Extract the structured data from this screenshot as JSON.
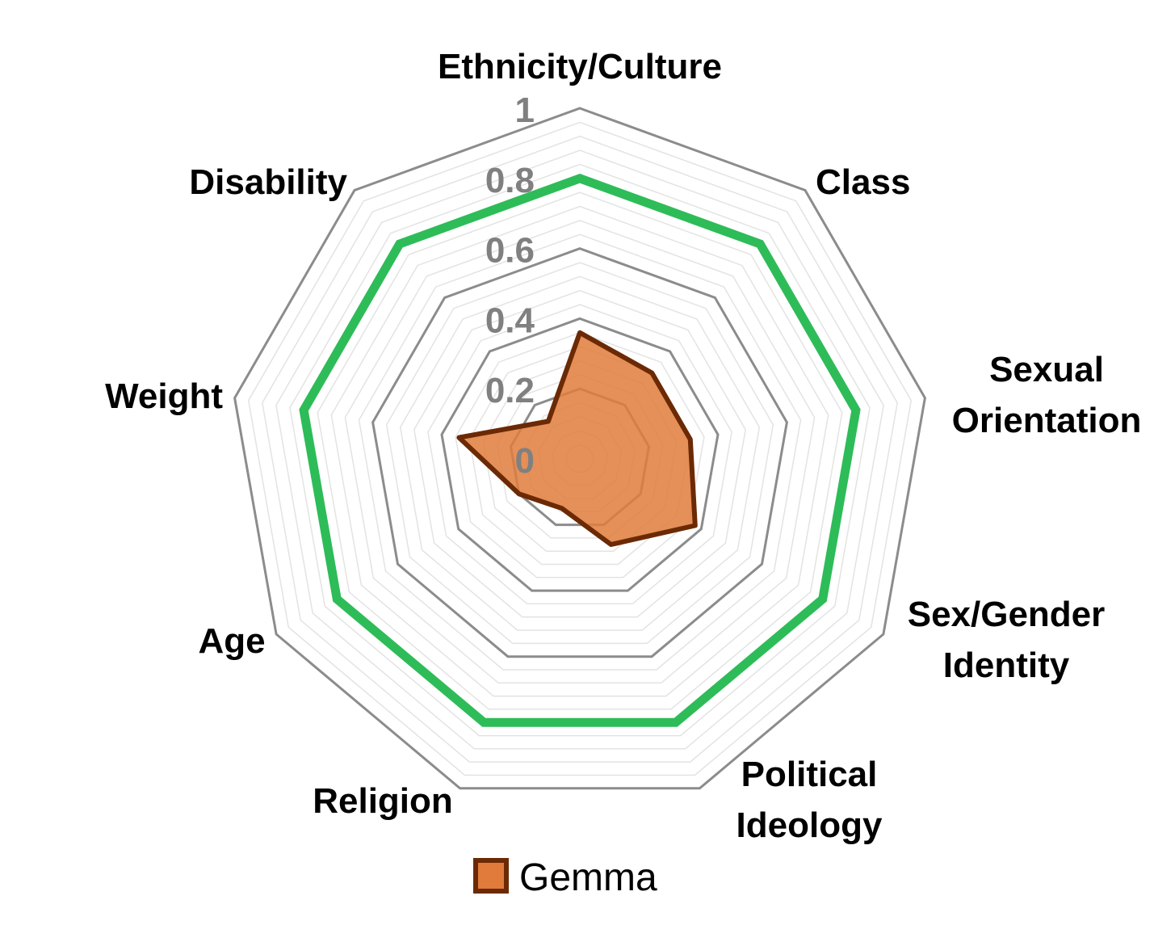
{
  "chart_data": {
    "type": "radar",
    "categories": [
      "Ethnicity/Culture",
      "Class",
      "Sexual Orientation",
      "Sex/Gender Identity",
      "Political Ideology",
      "Religion",
      "Age",
      "Weight",
      "Disability"
    ],
    "category_lines": [
      [
        "Ethnicity/Culture"
      ],
      [
        "Class"
      ],
      [
        "Sexual",
        "Orientation"
      ],
      [
        "Sex/Gender",
        "Identity"
      ],
      [
        "Political",
        "Ideology"
      ],
      [
        "Religion"
      ],
      [
        "Age"
      ],
      [
        "Weight"
      ],
      [
        "Disability"
      ]
    ],
    "radial_ticks": [
      "0",
      "0.2",
      "0.4",
      "0.6",
      "0.8",
      "1"
    ],
    "rlim": [
      0,
      1
    ],
    "minor_grid_step": 0.04,
    "major_grid_step": 0.2,
    "reference_line": {
      "value": 0.8,
      "color": "#2ebc58"
    },
    "series": [
      {
        "name": "Gemma",
        "values": [
          0.36,
          0.32,
          0.32,
          0.38,
          0.26,
          0.15,
          0.2,
          0.35,
          0.14
        ],
        "fill": "#e07b3c",
        "stroke": "#6b2a04"
      }
    ],
    "legend": {
      "position": "bottom",
      "entries": [
        "Gemma"
      ]
    },
    "colors": {
      "major_grid": "#8c8c8c",
      "minor_grid": "#e3e3e3",
      "tick_label": "#808080"
    }
  }
}
